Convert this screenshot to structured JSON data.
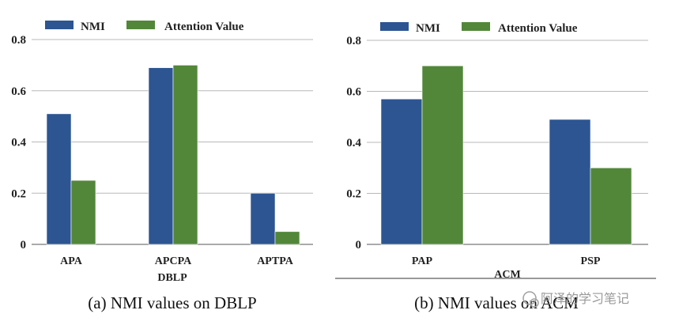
{
  "colors": {
    "nmi": "#2c5592",
    "attention": "#52873a",
    "grid": "#b8b8b8"
  },
  "chart_data": [
    {
      "type": "bar",
      "id": "dblp",
      "categories": [
        "APA",
        "APCPA",
        "APTPA"
      ],
      "series": [
        {
          "name": "NMI",
          "values": [
            0.51,
            0.69,
            0.2
          ]
        },
        {
          "name": "Attention Value",
          "values": [
            0.25,
            0.7,
            0.05
          ]
        }
      ],
      "xlabel": "DBLP",
      "ylim": [
        0,
        0.8
      ],
      "yticks": [
        "0",
        "0.2",
        "0.4",
        "0.6",
        "0.8"
      ],
      "legend": [
        "NMI",
        "Attention Value"
      ],
      "caption": "(a)  NMI values on DBLP"
    },
    {
      "type": "bar",
      "id": "acm",
      "categories": [
        "PAP",
        "PSP"
      ],
      "series": [
        {
          "name": "NMI",
          "values": [
            0.57,
            0.49
          ]
        },
        {
          "name": "Attention Value",
          "values": [
            0.7,
            0.3
          ]
        }
      ],
      "xlabel": "ACM",
      "ylim": [
        0,
        0.8
      ],
      "yticks": [
        "0",
        "0.2",
        "0.4",
        "0.6",
        "0.8"
      ],
      "legend": [
        "NMI",
        "Attention Value"
      ],
      "caption": "(b)  NMI values on ACM"
    }
  ],
  "watermark": "阿泽的学习笔记"
}
